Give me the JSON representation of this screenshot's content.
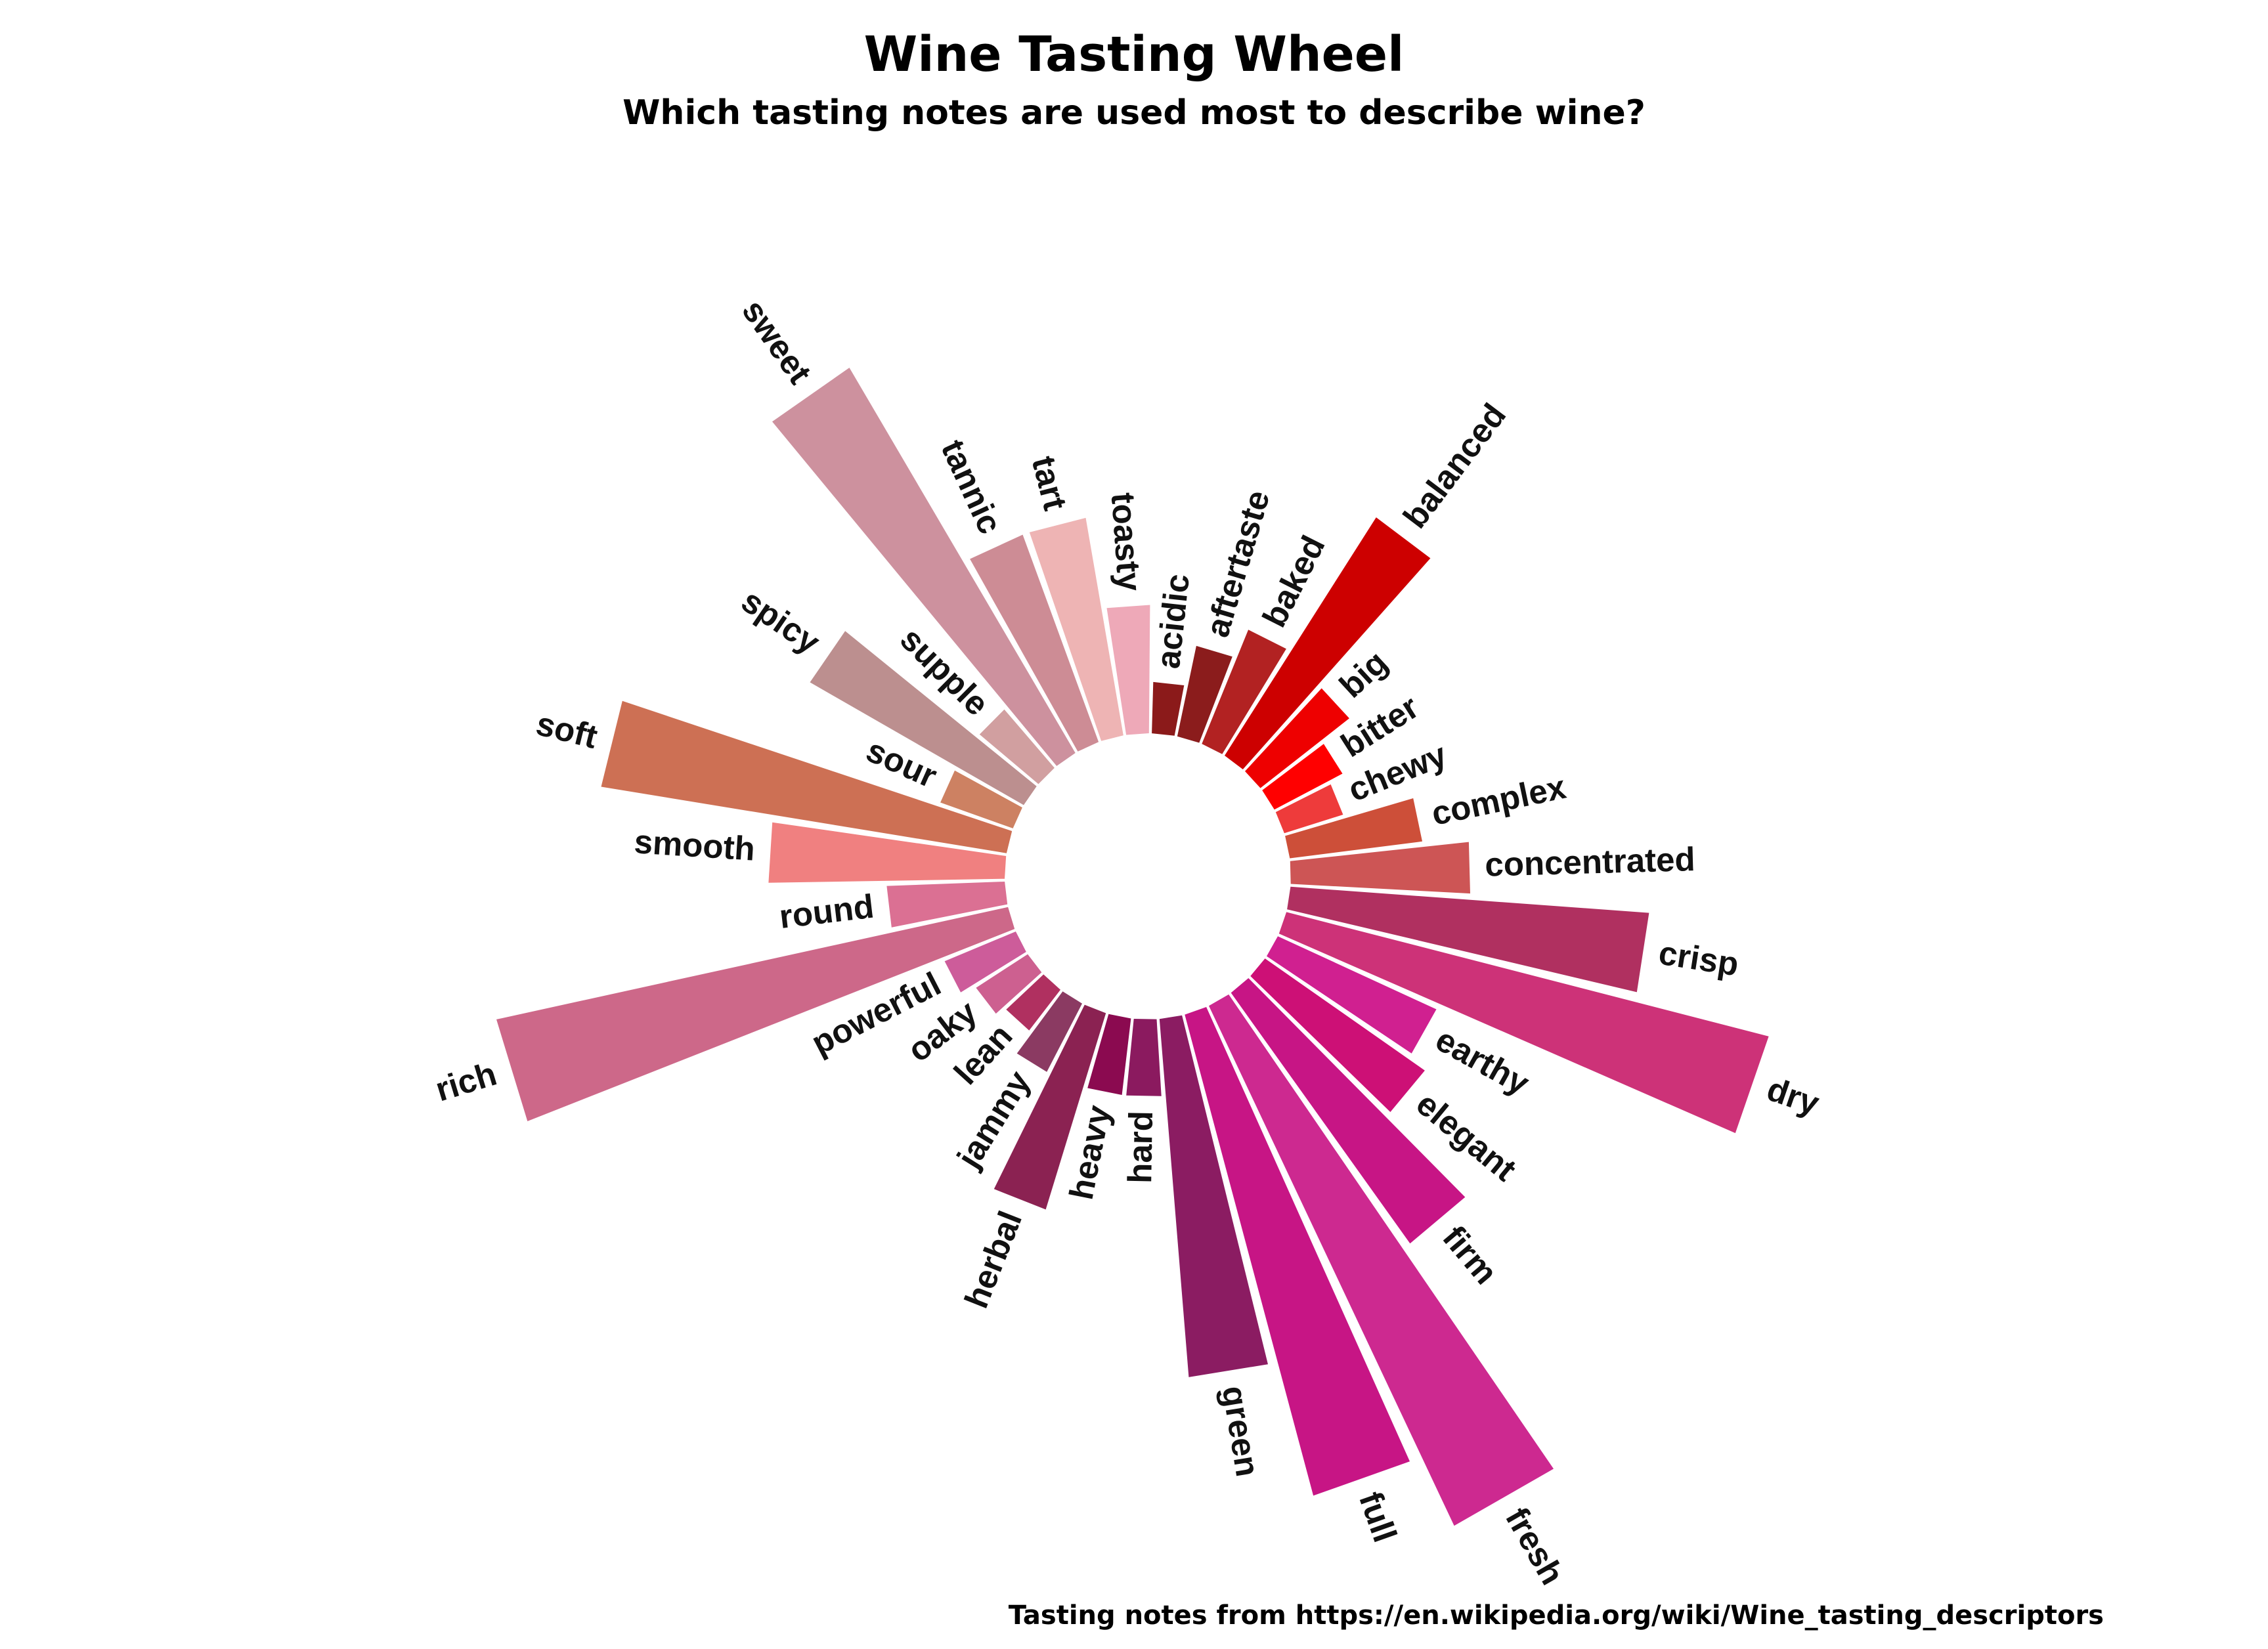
{
  "chart_data": {
    "type": "bar",
    "title": "Wine Tasting Wheel",
    "subtitle": "Which tasting notes are used most to describe wine?",
    "caption": "Tasting notes from https://en.wikipedia.org/wiki/Wine_tasting_descriptors",
    "polar": true,
    "bars": [
      {
        "label": "acidic",
        "value": 1,
        "color": "#8B1A1A"
      },
      {
        "label": "aftertaste",
        "value": 1.8,
        "color": "#8B1C1C"
      },
      {
        "label": "baked",
        "value": 2.4,
        "color": "#B22222"
      },
      {
        "label": "balanced",
        "value": 5.5,
        "color": "#CD0000"
      },
      {
        "label": "big",
        "value": 2.2,
        "color": "#EE0000"
      },
      {
        "label": "bitter",
        "value": 1.5,
        "color": "#FF0000"
      },
      {
        "label": "chewy",
        "value": 1.2,
        "color": "#EE3B3B"
      },
      {
        "label": "complex",
        "value": 2.6,
        "color": "#CD4F39"
      },
      {
        "label": "concentrated",
        "value": 3.5,
        "color": "#CD5555"
      },
      {
        "label": "crisp",
        "value": 7,
        "color": "#B03060"
      },
      {
        "label": "dry",
        "value": 9.7,
        "color": "#CD3278"
      },
      {
        "label": "earthy",
        "value": 3.4,
        "color": "#D02090"
      },
      {
        "label": "elegant",
        "value": 3.8,
        "color": "#CD1076"
      },
      {
        "label": "firm",
        "value": 6,
        "color": "#C71585"
      },
      {
        "label": "fresh",
        "value": 11.2,
        "color": "#CD2990"
      },
      {
        "label": "full",
        "value": 9.7,
        "color": "#C71585"
      },
      {
        "label": "green",
        "value": 7,
        "color": "#8B1C62"
      },
      {
        "label": "hard",
        "value": 1.5,
        "color": "#8B1A5F"
      },
      {
        "label": "heavy",
        "value": 1.5,
        "color": "#8B0A50"
      },
      {
        "label": "herbal",
        "value": 4,
        "color": "#8B2252"
      },
      {
        "label": "jammy",
        "value": 1.5,
        "color": "#8B3A62"
      },
      {
        "label": "lean",
        "value": 1,
        "color": "#B03060"
      },
      {
        "label": "oaky",
        "value": 1.2,
        "color": "#CD6090"
      },
      {
        "label": "powerful",
        "value": 1.5,
        "color": "#CD5C9A"
      },
      {
        "label": "rich",
        "value": 10.2,
        "color": "#CD6889"
      },
      {
        "label": "round",
        "value": 2.3,
        "color": "#DB7093"
      },
      {
        "label": "smooth",
        "value": 4.6,
        "color": "#F08080"
      },
      {
        "label": "soft",
        "value": 8,
        "color": "#CD7054"
      },
      {
        "label": "sour",
        "value": 1.5,
        "color": "#CD8162"
      },
      {
        "label": "spicy",
        "value": 4.8,
        "color": "#BC8F8F"
      },
      {
        "label": "supple",
        "value": 1.5,
        "color": "#D19FA0"
      },
      {
        "label": "sweet",
        "value": 8.7,
        "color": "#CD919E"
      },
      {
        "label": "tannic",
        "value": 4.3,
        "color": "#CD8C95"
      },
      {
        "label": "tart",
        "value": 4.3,
        "color": "#EEB4B4"
      },
      {
        "label": "toasty",
        "value": 2.5,
        "color": "#EEA9B8"
      }
    ]
  }
}
